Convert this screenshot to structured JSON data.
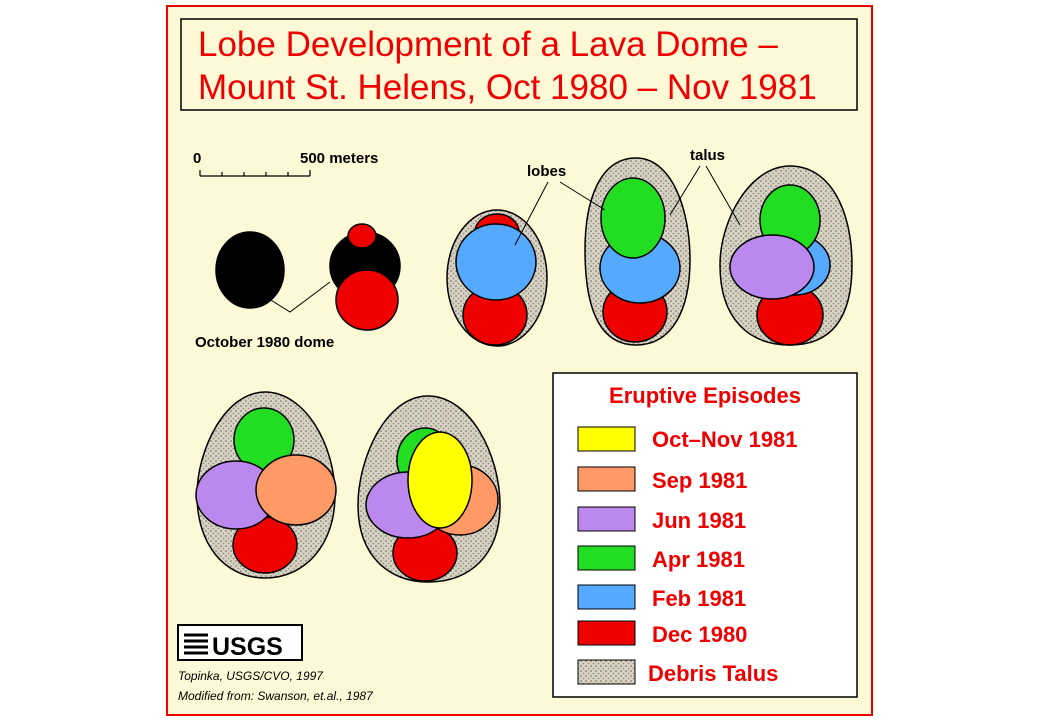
{
  "title": {
    "lines": [
      "Lobe Development of a Lava Dome –",
      "Mount St. Helens, Oct 1980 – Nov 1981"
    ]
  },
  "scale": {
    "start": "0",
    "end": "500 meters"
  },
  "labels": {
    "lobes": "lobes",
    "talus": "talus",
    "dome": "October 1980 dome"
  },
  "legend": {
    "title": "Eruptive Episodes",
    "items": [
      "Oct–Nov 1981",
      "Sep 1981",
      "Jun 1981",
      "Apr 1981",
      "Feb 1981",
      "Dec 1980",
      "Debris Talus"
    ]
  },
  "logo": "USGS",
  "credits": [
    "Topinka, USGS/CVO, 1997",
    "Modified from: Swanson, et.al., 1987"
  ]
}
